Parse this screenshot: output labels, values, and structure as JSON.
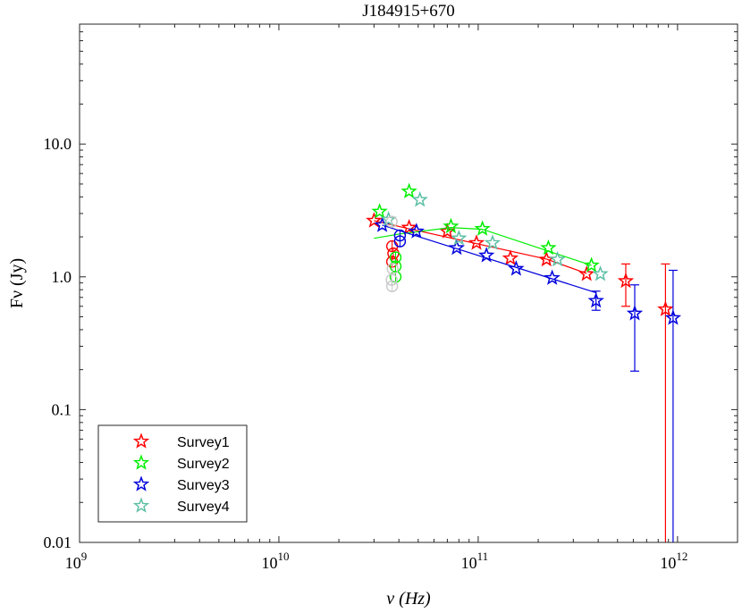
{
  "chart_data": {
    "type": "scatter",
    "title": "J184915+670",
    "xlabel": "ν (Hz)",
    "ylabel": "Fν (Jy)",
    "xscale": "log",
    "yscale": "log",
    "xlim": [
      1000000000.0,
      2000000000000.0
    ],
    "ylim": [
      0.01,
      80
    ],
    "x_ticks": [
      {
        "value": 1000000000.0,
        "base": "10",
        "exp": "9"
      },
      {
        "value": 10000000000.0,
        "base": "10",
        "exp": "10"
      },
      {
        "value": 100000000000.0,
        "base": "10",
        "exp": "11"
      },
      {
        "value": 1000000000000.0,
        "base": "10",
        "exp": "12"
      }
    ],
    "y_ticks": [
      {
        "value": 0.01,
        "label": "0.01"
      },
      {
        "value": 0.1,
        "label": "0.1"
      },
      {
        "value": 1,
        "label": "1.0"
      },
      {
        "value": 10,
        "label": "10.0"
      }
    ],
    "legend_position": "bottom-left",
    "series": [
      {
        "name": "Survey1",
        "color": "#ff0000",
        "stars": [
          {
            "x": 30000000000.0,
            "y": 2.65
          },
          {
            "x": 45000000000.0,
            "y": 2.35
          },
          {
            "x": 70000000000.0,
            "y": 2.2
          },
          {
            "x": 98000000000.0,
            "y": 1.8
          },
          {
            "x": 145000000000.0,
            "y": 1.38
          },
          {
            "x": 220000000000.0,
            "y": 1.35
          },
          {
            "x": 350000000000.0,
            "y": 1.05
          },
          {
            "x": 550000000000.0,
            "y": 0.93,
            "err": [
              0.6,
              1.25
            ]
          },
          {
            "x": 870000000000.0,
            "y": 0.57,
            "err": [
              0.01,
              1.25
            ]
          }
        ],
        "circles": [
          {
            "x": 37000000000.0,
            "y": 1.7
          },
          {
            "x": 37500000000.0,
            "y": 1.5
          },
          {
            "x": 37000000000.0,
            "y": 1.3
          }
        ],
        "fit": [
          [
            30000000000.0,
            2.65
          ],
          [
            45000000000.0,
            2.3
          ],
          [
            220000000000.0,
            1.36
          ],
          [
            350000000000.0,
            1.06
          ]
        ]
      },
      {
        "name": "Survey2",
        "color": "#00ee00",
        "stars": [
          {
            "x": 32000000000.0,
            "y": 3.1
          },
          {
            "x": 45000000000.0,
            "y": 4.4
          },
          {
            "x": 73000000000.0,
            "y": 2.4
          },
          {
            "x": 105000000000.0,
            "y": 2.3
          },
          {
            "x": 225000000000.0,
            "y": 1.65
          },
          {
            "x": 370000000000.0,
            "y": 1.22
          }
        ],
        "circles": [
          {
            "x": 38500000000.0,
            "y": 1.4
          },
          {
            "x": 38500000000.0,
            "y": 1.2
          },
          {
            "x": 38500000000.0,
            "y": 1.0
          }
        ],
        "fit": [
          [
            30000000000.0,
            1.95
          ],
          [
            40000000000.0,
            2.1
          ],
          [
            73000000000.0,
            2.35
          ],
          [
            105000000000.0,
            2.28
          ],
          [
            370000000000.0,
            1.22
          ]
        ]
      },
      {
        "name": "Survey3",
        "color": "#0000dd",
        "stars": [
          {
            "x": 33000000000.0,
            "y": 2.45
          },
          {
            "x": 49000000000.0,
            "y": 2.2
          },
          {
            "x": 78000000000.0,
            "y": 1.65
          },
          {
            "x": 110000000000.0,
            "y": 1.45
          },
          {
            "x": 155000000000.0,
            "y": 1.15
          },
          {
            "x": 235000000000.0,
            "y": 0.98
          },
          {
            "x": 390000000000.0,
            "y": 0.66,
            "err": [
              0.56,
              0.78
            ]
          },
          {
            "x": 610000000000.0,
            "y": 0.53,
            "err": [
              0.195,
              0.87
            ]
          },
          {
            "x": 950000000000.0,
            "y": 0.49,
            "err": [
              0.01,
              1.12
            ]
          }
        ],
        "circles": [
          {
            "x": 40500000000.0,
            "y": 2.05
          },
          {
            "x": 40500000000.0,
            "y": 1.85
          }
        ],
        "fit": [
          [
            33000000000.0,
            2.45
          ],
          [
            390000000000.0,
            0.76
          ]
        ]
      },
      {
        "name": "Survey4",
        "color": "#5dbfa4",
        "stars": [
          {
            "x": 35500000000.0,
            "y": 2.7
          },
          {
            "x": 51000000000.0,
            "y": 3.8
          },
          {
            "x": 80000000000.0,
            "y": 1.95
          },
          {
            "x": 118000000000.0,
            "y": 1.8
          },
          {
            "x": 250000000000.0,
            "y": 1.35
          },
          {
            "x": 410000000000.0,
            "y": 1.05
          }
        ],
        "circles": [],
        "fit": []
      },
      {
        "name": "",
        "color": "#c8c8c8",
        "stars": [],
        "circles": [
          {
            "x": 36800000000.0,
            "y": 2.6
          },
          {
            "x": 37200000000.0,
            "y": 1.15
          },
          {
            "x": 36800000000.0,
            "y": 0.95
          },
          {
            "x": 37000000000.0,
            "y": 0.85
          }
        ],
        "fit": []
      }
    ]
  }
}
